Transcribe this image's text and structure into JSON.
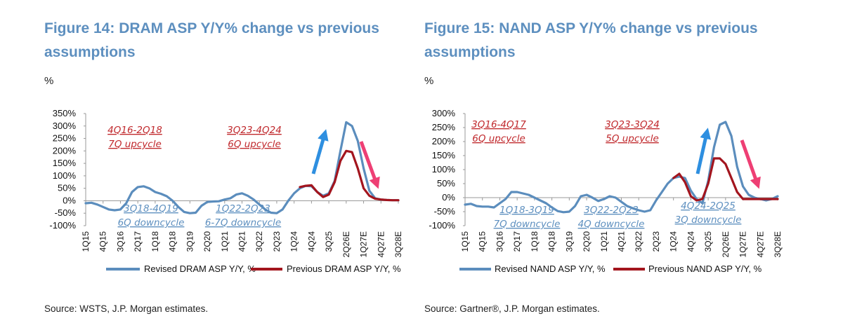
{
  "charts": [
    {
      "title": "Figure 14: DRAM ASP Y/Y% change vs previous assumptions",
      "unit": "%",
      "source": "Source: WSTS, J.P. Morgan estimates.",
      "annotations_red": [
        {
          "lines": [
            "4Q16-2Q18",
            "7Q upcycle"
          ]
        },
        {
          "lines": [
            "3Q23-4Q24",
            "6Q upcycle"
          ]
        }
      ],
      "annotations_blue": [
        {
          "lines": [
            "3Q18-4Q19",
            "6Q downcycle"
          ]
        },
        {
          "lines": [
            "1Q22-2Q23",
            "6-7Q downcycle"
          ]
        }
      ]
    },
    {
      "title": "Figure 15: NAND ASP Y/Y% change vs previous assumptions",
      "unit": "%",
      "source": "Source:  Gartner®, J.P. Morgan estimates.",
      "annotations_red": [
        {
          "lines": [
            "3Q16-4Q17",
            "6Q upcycle"
          ]
        },
        {
          "lines": [
            "3Q23-3Q24",
            "5Q upcycle"
          ]
        }
      ],
      "annotations_blue": [
        {
          "lines": [
            "1Q18-3Q19",
            "7Q downcycle"
          ]
        },
        {
          "lines": [
            "3Q22-2Q23",
            "4Q downcycle"
          ]
        },
        {
          "lines": [
            "4Q24-2Q25",
            "3Q downcycle"
          ]
        }
      ]
    }
  ],
  "colors": {
    "revised": "#5b8dbd",
    "previous": "#a3151e",
    "title": "#5d8fbf",
    "up_arrow": "#2e8fe0",
    "down_arrow": "#ee3f74"
  },
  "chart_data": [
    {
      "type": "line",
      "ylabel": "%",
      "ylim": [
        -100,
        350
      ],
      "yticks": [
        "-100%",
        "-50%",
        "0%",
        "50%",
        "100%",
        "150%",
        "200%",
        "250%",
        "300%",
        "350%"
      ],
      "x_tick_labels": [
        "1Q15",
        "4Q15",
        "3Q16",
        "2Q17",
        "1Q18",
        "4Q18",
        "3Q19",
        "2Q20",
        "1Q21",
        "4Q21",
        "3Q22",
        "2Q23",
        "1Q24",
        "4Q24",
        "3Q25",
        "2Q26E",
        "1Q27E",
        "4Q27E",
        "3Q28E"
      ],
      "quarters": [
        "1Q15",
        "2Q15",
        "3Q15",
        "4Q15",
        "1Q16",
        "2Q16",
        "3Q16",
        "4Q16",
        "1Q17",
        "2Q17",
        "3Q17",
        "4Q17",
        "1Q18",
        "2Q18",
        "3Q18",
        "4Q18",
        "1Q19",
        "2Q19",
        "3Q19",
        "4Q19",
        "1Q20",
        "2Q20",
        "3Q20",
        "4Q20",
        "1Q21",
        "2Q21",
        "3Q21",
        "4Q21",
        "1Q22",
        "2Q22",
        "3Q22",
        "4Q22",
        "1Q23",
        "2Q23",
        "3Q23",
        "4Q23",
        "1Q24",
        "2Q24",
        "3Q24",
        "4Q24",
        "1Q25",
        "2Q25",
        "3Q25",
        "4Q25",
        "1Q26E",
        "2Q26E",
        "3Q26E",
        "4Q26E",
        "1Q27E",
        "2Q27E",
        "3Q27E",
        "4Q27E",
        "1Q28E",
        "2Q28E",
        "3Q28E"
      ],
      "series": [
        {
          "name": "Revised DRAM ASP Y/Y, %",
          "values": [
            -10,
            -8,
            -15,
            -25,
            -35,
            -38,
            -35,
            -10,
            35,
            55,
            58,
            50,
            35,
            28,
            18,
            0,
            -25,
            -45,
            -50,
            -48,
            -20,
            -5,
            -3,
            -2,
            5,
            10,
            25,
            30,
            20,
            5,
            -15,
            -35,
            -48,
            -50,
            -35,
            0,
            30,
            50,
            60,
            58,
            35,
            20,
            30,
            80,
            200,
            315,
            300,
            240,
            130,
            40,
            10,
            5,
            3,
            2,
            2
          ]
        },
        {
          "name": "Previous DRAM ASP Y/Y, %",
          "values": [
            null,
            null,
            null,
            null,
            null,
            null,
            null,
            null,
            null,
            null,
            null,
            null,
            null,
            null,
            null,
            null,
            null,
            null,
            null,
            null,
            null,
            null,
            null,
            null,
            null,
            null,
            null,
            null,
            null,
            null,
            null,
            null,
            null,
            null,
            null,
            null,
            null,
            55,
            60,
            62,
            35,
            15,
            25,
            75,
            160,
            200,
            195,
            130,
            50,
            20,
            8,
            5,
            3,
            2,
            2
          ]
        }
      ],
      "legend": "bottom",
      "grid": false
    },
    {
      "type": "line",
      "ylabel": "%",
      "ylim": [
        -100,
        300
      ],
      "yticks": [
        "-100%",
        "-50%",
        "0%",
        "50%",
        "100%",
        "150%",
        "200%",
        "250%",
        "300%"
      ],
      "x_tick_labels": [
        "1Q15",
        "4Q15",
        "3Q16",
        "2Q17",
        "1Q18",
        "4Q18",
        "3Q19",
        "2Q20",
        "1Q21",
        "4Q21",
        "3Q22",
        "2Q23",
        "1Q24",
        "4Q24",
        "3Q25",
        "2Q26E",
        "1Q27E",
        "4Q27E",
        "3Q28E"
      ],
      "quarters": [
        "1Q15",
        "2Q15",
        "3Q15",
        "4Q15",
        "1Q16",
        "2Q16",
        "3Q16",
        "4Q16",
        "1Q17",
        "2Q17",
        "3Q17",
        "4Q17",
        "1Q18",
        "2Q18",
        "3Q18",
        "4Q18",
        "1Q19",
        "2Q19",
        "3Q19",
        "4Q19",
        "1Q20",
        "2Q20",
        "3Q20",
        "4Q20",
        "1Q21",
        "2Q21",
        "3Q21",
        "4Q21",
        "1Q22",
        "2Q22",
        "3Q22",
        "4Q22",
        "1Q23",
        "2Q23",
        "3Q23",
        "4Q23",
        "1Q24",
        "2Q24",
        "3Q24",
        "4Q24",
        "1Q25",
        "2Q25",
        "3Q25",
        "4Q25",
        "1Q26E",
        "2Q26E",
        "3Q26E",
        "4Q26E",
        "1Q27E",
        "2Q27E",
        "3Q27E",
        "4Q27E",
        "1Q28E",
        "2Q28E",
        "3Q28E"
      ],
      "series": [
        {
          "name": "Revised NAND ASP Y/Y, %",
          "values": [
            -25,
            -22,
            -30,
            -32,
            -32,
            -35,
            -20,
            -5,
            20,
            20,
            15,
            10,
            0,
            -10,
            -20,
            -35,
            -48,
            -52,
            -50,
            -30,
            5,
            10,
            0,
            -12,
            -5,
            5,
            0,
            -15,
            -30,
            -38,
            -45,
            -50,
            -45,
            -10,
            20,
            50,
            70,
            75,
            70,
            25,
            -5,
            -20,
            60,
            180,
            260,
            270,
            220,
            110,
            40,
            10,
            0,
            -5,
            -10,
            -5,
            5
          ]
        },
        {
          "name": "Previous NAND ASP Y/Y, %",
          "values": [
            null,
            null,
            null,
            null,
            null,
            null,
            null,
            null,
            null,
            null,
            null,
            null,
            null,
            null,
            null,
            null,
            null,
            null,
            null,
            null,
            null,
            null,
            null,
            null,
            null,
            null,
            null,
            null,
            null,
            null,
            null,
            null,
            null,
            null,
            null,
            null,
            70,
            85,
            55,
            5,
            -10,
            -5,
            50,
            140,
            140,
            120,
            70,
            20,
            -5,
            -5,
            -5,
            -5,
            -5,
            -5,
            -5
          ]
        }
      ],
      "legend": "bottom",
      "grid": false
    }
  ]
}
